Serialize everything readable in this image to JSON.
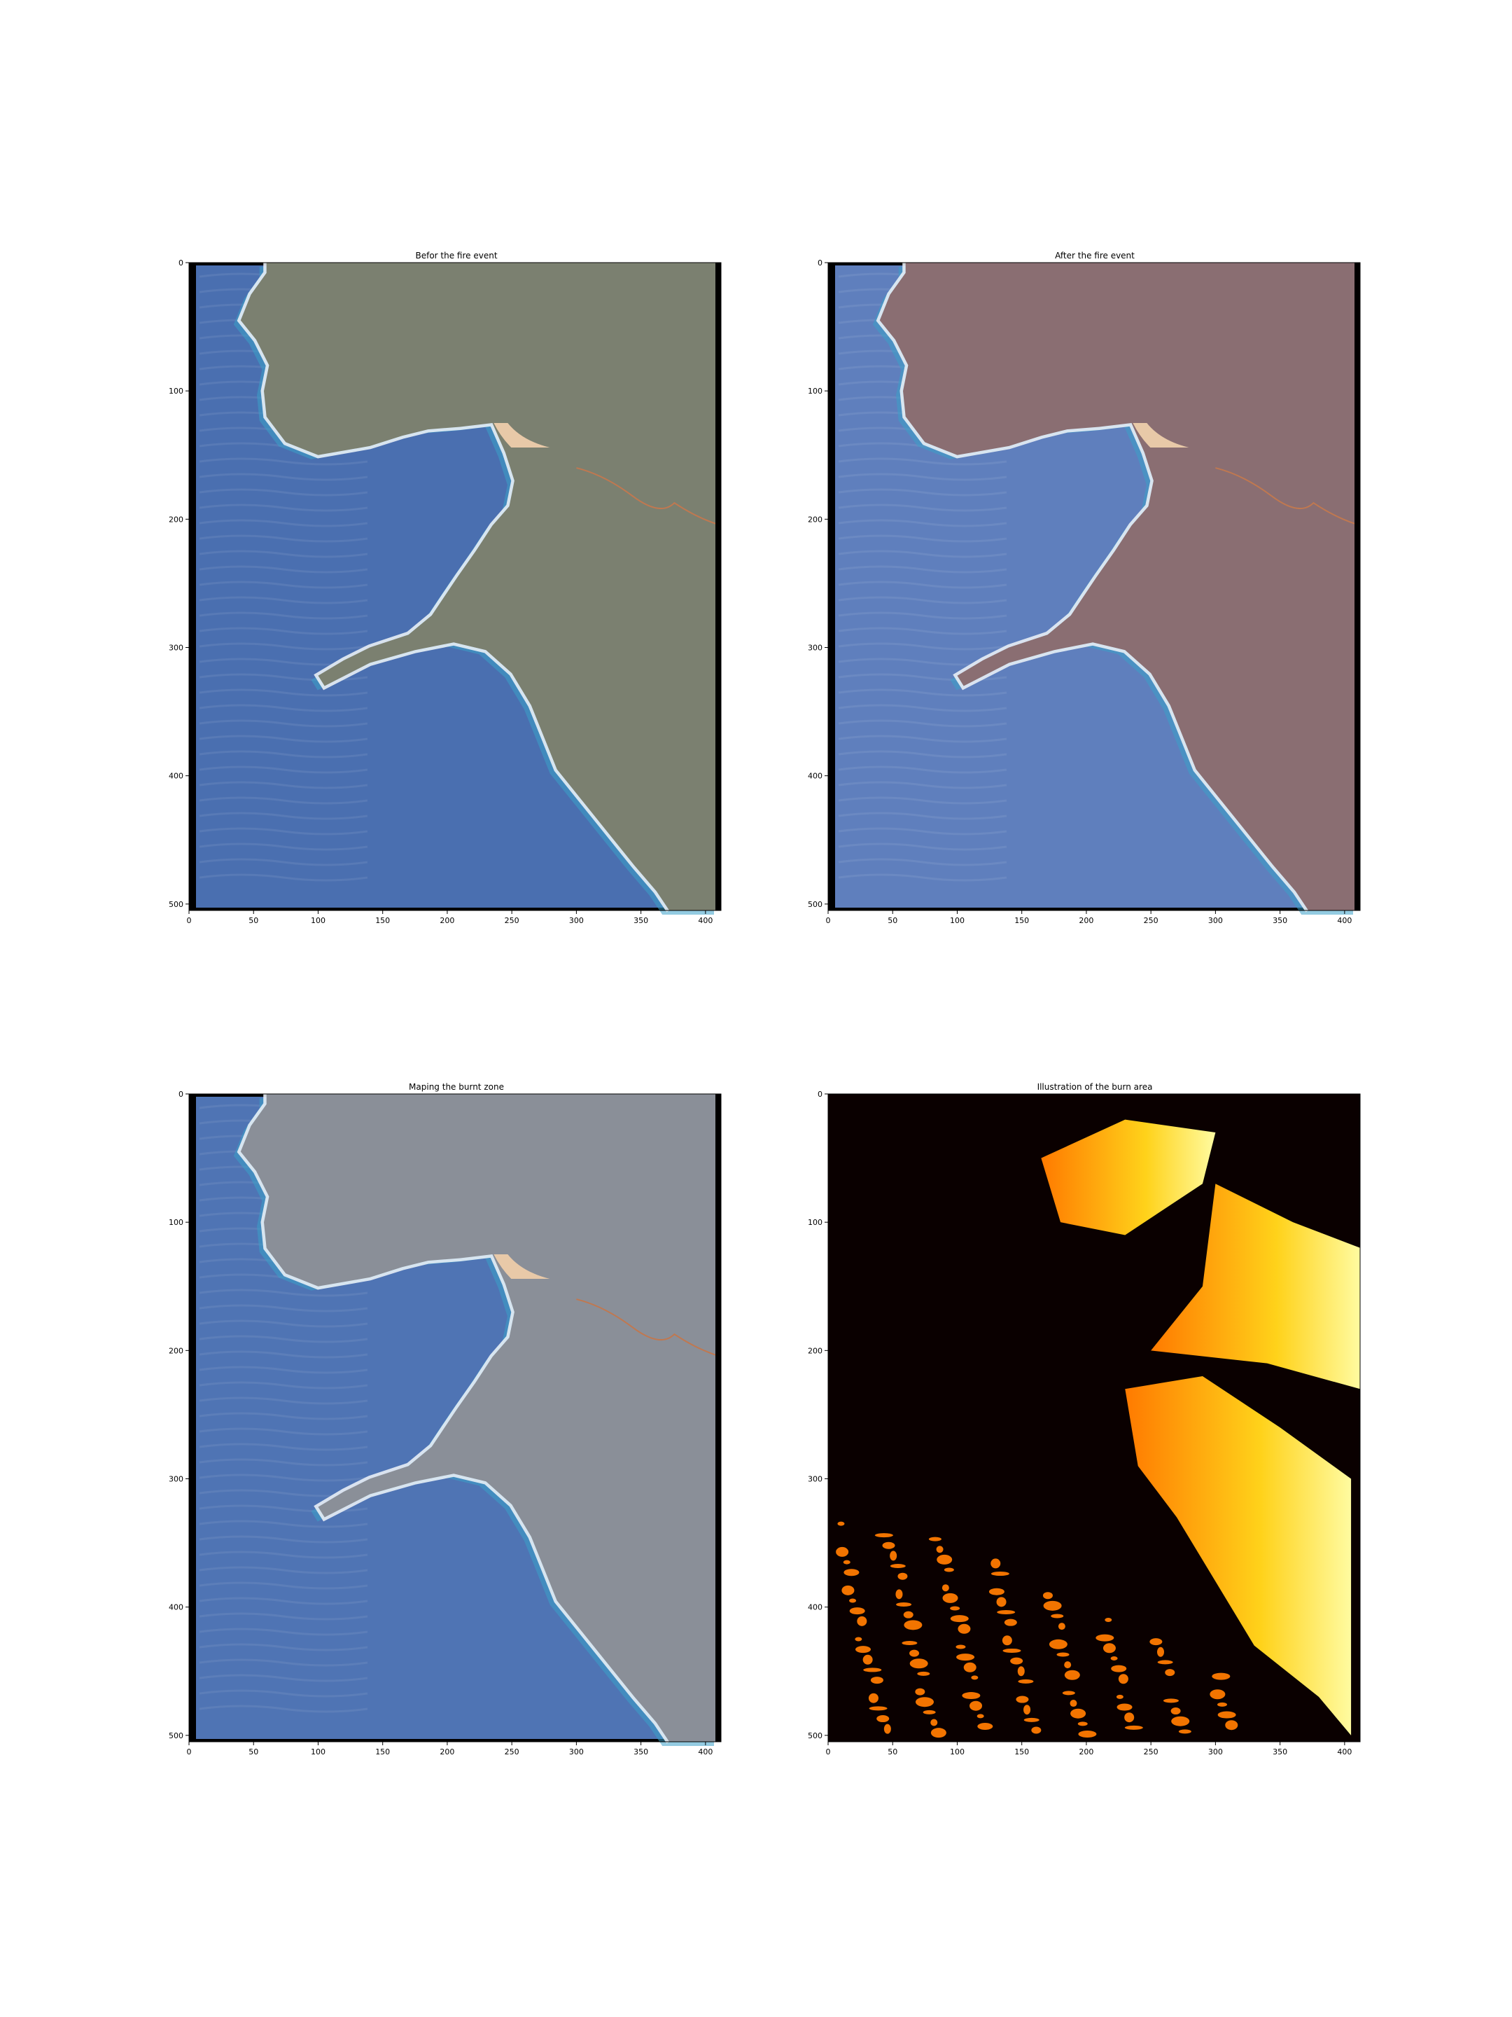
{
  "figure": {
    "panels": [
      {
        "title": "Befor the fire event",
        "x_ticks": [
          "0",
          "50",
          "100",
          "150",
          "200",
          "250",
          "300",
          "350",
          "400"
        ],
        "y_ticks": [
          "0",
          "100",
          "200",
          "300",
          "400",
          "500"
        ],
        "content": "true-color"
      },
      {
        "title": "After the fire event",
        "x_ticks": [
          "0",
          "50",
          "100",
          "150",
          "200",
          "250",
          "300",
          "350",
          "400"
        ],
        "y_ticks": [
          "0",
          "100",
          "200",
          "300",
          "400",
          "500"
        ],
        "content": "true-color-burned"
      },
      {
        "title": "Maping the burnt zone",
        "x_ticks": [
          "0",
          "50",
          "100",
          "150",
          "200",
          "250",
          "300",
          "350",
          "400"
        ],
        "y_ticks": [
          "0",
          "100",
          "200",
          "300",
          "400",
          "500"
        ],
        "content": "burn-overlay"
      },
      {
        "title": "Illustration of the burn area",
        "x_ticks": [
          "0",
          "50",
          "100",
          "150",
          "200",
          "250",
          "300",
          "350",
          "400"
        ],
        "y_ticks": [
          "0",
          "100",
          "200",
          "300",
          "400",
          "500"
        ],
        "content": "heatmap"
      }
    ],
    "colors": {
      "ocean": "#4a6fb0",
      "ocean_after": "#5f7fbd",
      "land_before": "#7b8070",
      "land_after": "#8a6e72",
      "shore_surf": "#e8eef5",
      "shallow": "#3aa0c8",
      "burn_overlay": "#ff4500",
      "heat_dark": "#0a0000",
      "heat_mid": "#ff7a00",
      "heat_hot": "#ffd21a",
      "heat_max": "#fffba0"
    }
  }
}
